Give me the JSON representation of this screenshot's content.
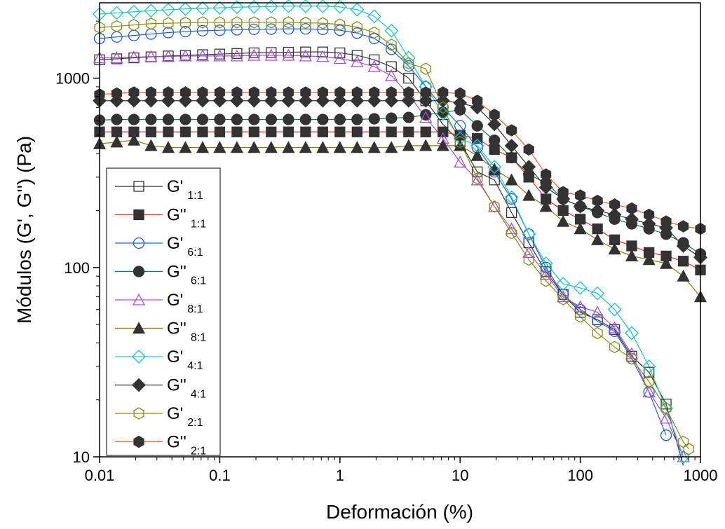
{
  "chart_data": {
    "type": "line",
    "xlabel": "Deformación (%)",
    "ylabel": "Módulos  (G', G'') (Pa)",
    "xscale": "log",
    "yscale": "log",
    "xlim": [
      0.01,
      1000
    ],
    "ylim": [
      10,
      2500
    ],
    "x_ticks": [
      "0.01",
      "0.1",
      "1",
      "10",
      "100",
      "1000"
    ],
    "y_ticks": [
      "10",
      "100",
      "1000"
    ],
    "grid": false,
    "legend_position": "left",
    "series": [
      {
        "name": "G'",
        "subscript": "1:1",
        "marker": "square",
        "filled": false,
        "color": "#333333",
        "x": [
          0.01,
          0.0139,
          0.0193,
          0.0268,
          0.0373,
          0.0518,
          0.072,
          0.1,
          0.139,
          0.193,
          0.268,
          0.373,
          0.518,
          0.72,
          1.0,
          1.39,
          1.93,
          2.68,
          3.73,
          5.18,
          7.2,
          10,
          13.9,
          19.3,
          26.8,
          37.3,
          51.8,
          72,
          100,
          139,
          193,
          268,
          373,
          518,
          720
        ],
        "y": [
          1250,
          1265,
          1280,
          1295,
          1310,
          1320,
          1330,
          1340,
          1350,
          1360,
          1365,
          1370,
          1375,
          1375,
          1360,
          1320,
          1250,
          1150,
          1000,
          760,
          570,
          460,
          320,
          290,
          195,
          135,
          95,
          72,
          58,
          53,
          47,
          34,
          28,
          19,
          9
        ]
      },
      {
        "name": "G''",
        "subscript": "1:1",
        "marker": "square",
        "filled": true,
        "color": "#ff2a2a",
        "x": [
          0.01,
          0.0139,
          0.0193,
          0.0268,
          0.0373,
          0.0518,
          0.072,
          0.1,
          0.139,
          0.193,
          0.268,
          0.373,
          0.518,
          0.72,
          1.0,
          1.39,
          1.93,
          2.68,
          3.73,
          5.18,
          7.2,
          10,
          13.9,
          19.3,
          26.8,
          37.3,
          51.8,
          72,
          100,
          139,
          193,
          268,
          373,
          518,
          720,
          1000
        ],
        "y": [
          520,
          520,
          520,
          520,
          520,
          520,
          520,
          520,
          520,
          520,
          520,
          520,
          520,
          520,
          520,
          520,
          520,
          520,
          520,
          520,
          520,
          500,
          480,
          420,
          380,
          300,
          230,
          200,
          180,
          160,
          140,
          130,
          120,
          115,
          108,
          97
        ]
      },
      {
        "name": "G'",
        "subscript": "6:1",
        "marker": "circle",
        "filled": false,
        "color": "#1f5fd6",
        "x": [
          0.01,
          0.0139,
          0.0193,
          0.0268,
          0.0373,
          0.0518,
          0.072,
          0.1,
          0.139,
          0.193,
          0.268,
          0.373,
          0.518,
          0.72,
          1.0,
          1.39,
          1.93,
          2.68,
          3.73,
          5.18,
          7.2,
          10,
          13.9,
          19.3,
          26.8,
          37.3,
          51.8,
          72,
          100,
          139,
          193,
          268,
          373,
          518
        ],
        "y": [
          1620,
          1650,
          1680,
          1710,
          1740,
          1760,
          1780,
          1790,
          1800,
          1810,
          1815,
          1820,
          1820,
          1810,
          1790,
          1730,
          1620,
          1420,
          1160,
          900,
          700,
          560,
          430,
          320,
          230,
          150,
          100,
          72,
          60,
          52,
          46,
          33,
          22,
          13
        ]
      },
      {
        "name": "G''",
        "subscript": "6:1",
        "marker": "circle",
        "filled": true,
        "color": "#0b7a4b",
        "x": [
          0.01,
          0.0139,
          0.0193,
          0.0268,
          0.0373,
          0.0518,
          0.072,
          0.1,
          0.139,
          0.193,
          0.268,
          0.373,
          0.518,
          0.72,
          1.0,
          1.39,
          1.93,
          2.68,
          3.73,
          5.18,
          7.2,
          10,
          13.9,
          19.3,
          26.8,
          37.3,
          51.8,
          72,
          100,
          139,
          193,
          268,
          373,
          518,
          720,
          1000
        ],
        "y": [
          600,
          605,
          605,
          605,
          605,
          605,
          605,
          605,
          605,
          605,
          605,
          605,
          605,
          605,
          605,
          605,
          610,
          615,
          620,
          640,
          660,
          680,
          560,
          470,
          380,
          310,
          280,
          230,
          210,
          195,
          180,
          170,
          160,
          150,
          135,
          118
        ]
      },
      {
        "name": "G'",
        "subscript": "8:1",
        "marker": "triangle",
        "filled": false,
        "color": "#a64fd6",
        "x": [
          0.01,
          0.0139,
          0.0193,
          0.0268,
          0.0373,
          0.0518,
          0.072,
          0.1,
          0.139,
          0.193,
          0.268,
          0.373,
          0.518,
          0.72,
          1.0,
          1.39,
          1.93,
          2.68,
          3.73,
          5.18,
          7.2,
          10,
          13.9,
          19.3,
          26.8,
          37.3,
          51.8,
          72,
          100,
          139,
          193,
          268,
          373,
          518,
          720
        ],
        "y": [
          1280,
          1280,
          1290,
          1300,
          1300,
          1310,
          1310,
          1310,
          1310,
          1320,
          1320,
          1320,
          1310,
          1300,
          1270,
          1220,
          1150,
          1030,
          820,
          620,
          480,
          360,
          290,
          210,
          160,
          120,
          92,
          70,
          62,
          58,
          48,
          35,
          22,
          16,
          10
        ]
      },
      {
        "name": "G''",
        "subscript": "8:1",
        "marker": "triangle",
        "filled": true,
        "color": "#8a7a00",
        "x": [
          0.01,
          0.0139,
          0.0193,
          0.0268,
          0.0373,
          0.0518,
          0.072,
          0.1,
          0.139,
          0.193,
          0.268,
          0.373,
          0.518,
          0.72,
          1.0,
          1.39,
          1.93,
          2.68,
          3.73,
          5.18,
          7.2,
          10,
          13.9,
          19.3,
          26.8,
          37.3,
          51.8,
          72,
          100,
          139,
          193,
          268,
          373,
          518,
          720,
          1000
        ],
        "y": [
          450,
          460,
          470,
          440,
          430,
          430,
          430,
          430,
          430,
          430,
          430,
          430,
          430,
          430,
          430,
          430,
          430,
          430,
          440,
          440,
          440,
          440,
          390,
          330,
          290,
          240,
          210,
          175,
          160,
          140,
          125,
          115,
          110,
          105,
          90,
          70
        ]
      },
      {
        "name": "G'",
        "subscript": "4:1",
        "marker": "diamond",
        "filled": false,
        "color": "#19c6c6",
        "x": [
          0.01,
          0.0139,
          0.0193,
          0.0268,
          0.0373,
          0.0518,
          0.072,
          0.1,
          0.139,
          0.193,
          0.268,
          0.373,
          0.518,
          0.72,
          1.0,
          1.39,
          1.93,
          2.68,
          3.73,
          5.18,
          7.2,
          10,
          13.9,
          19.3,
          26.8,
          37.3,
          51.8,
          72,
          100,
          139,
          193,
          268,
          373,
          518,
          720
        ],
        "y": [
          2180,
          2210,
          2240,
          2270,
          2300,
          2320,
          2340,
          2350,
          2370,
          2380,
          2390,
          2400,
          2400,
          2400,
          2380,
          2300,
          2120,
          1780,
          1280,
          900,
          650,
          480,
          440,
          340,
          235,
          150,
          105,
          82,
          78,
          73,
          60,
          45,
          30,
          18,
          10
        ]
      },
      {
        "name": "G''",
        "subscript": "4:1",
        "marker": "diamond",
        "filled": true,
        "color": "#3a2a3a",
        "x": [
          0.01,
          0.0139,
          0.0193,
          0.0268,
          0.0373,
          0.0518,
          0.072,
          0.1,
          0.139,
          0.193,
          0.268,
          0.373,
          0.518,
          0.72,
          1.0,
          1.39,
          1.93,
          2.68,
          3.73,
          5.18,
          7.2,
          10,
          13.9,
          19.3,
          26.8,
          37.3,
          51.8,
          72,
          100,
          139,
          193,
          268,
          373,
          518,
          720,
          1000
        ],
        "y": [
          760,
          760,
          760,
          760,
          760,
          760,
          760,
          760,
          760,
          760,
          760,
          760,
          760,
          760,
          760,
          760,
          760,
          760,
          760,
          760,
          760,
          740,
          700,
          570,
          440,
          340,
          265,
          230,
          210,
          200,
          190,
          180,
          170,
          162,
          130,
          113
        ]
      },
      {
        "name": "G'",
        "subscript": "2:1",
        "marker": "hexagon",
        "filled": false,
        "color": "#8a8a10",
        "x": [
          0.01,
          0.0139,
          0.0193,
          0.0268,
          0.0373,
          0.0518,
          0.072,
          0.1,
          0.139,
          0.193,
          0.268,
          0.373,
          0.518,
          0.72,
          1.0,
          1.39,
          1.93,
          2.68,
          3.73,
          5.18,
          7.2,
          10,
          13.9,
          19.3,
          26.8,
          37.3,
          51.8,
          72,
          100,
          139,
          193,
          268,
          373,
          518,
          720,
          800
        ],
        "y": [
          1850,
          1880,
          1910,
          1940,
          1950,
          1960,
          1970,
          1970,
          1970,
          1970,
          1970,
          1970,
          1960,
          1950,
          1920,
          1860,
          1740,
          1500,
          1200,
          1120,
          700,
          460,
          295,
          210,
          152,
          110,
          85,
          68,
          55,
          45,
          38,
          33,
          25,
          18,
          12,
          11
        ]
      },
      {
        "name": "G''",
        "subscript": "2:1",
        "marker": "hexagon",
        "filled": true,
        "color": "#ff5a1f",
        "x": [
          0.01,
          0.0139,
          0.0193,
          0.0268,
          0.0373,
          0.0518,
          0.072,
          0.1,
          0.139,
          0.193,
          0.268,
          0.373,
          0.518,
          0.72,
          1.0,
          1.39,
          1.93,
          2.68,
          3.73,
          5.18,
          7.2,
          10,
          13.9,
          19.3,
          26.8,
          37.3,
          51.8,
          72,
          100,
          139,
          193,
          268,
          373,
          518,
          720,
          1000
        ],
        "y": [
          820,
          830,
          840,
          840,
          840,
          840,
          840,
          840,
          840,
          840,
          840,
          840,
          840,
          840,
          840,
          840,
          840,
          840,
          840,
          840,
          840,
          830,
          760,
          640,
          530,
          420,
          310,
          250,
          240,
          225,
          215,
          205,
          190,
          175,
          165,
          160
        ]
      }
    ]
  }
}
